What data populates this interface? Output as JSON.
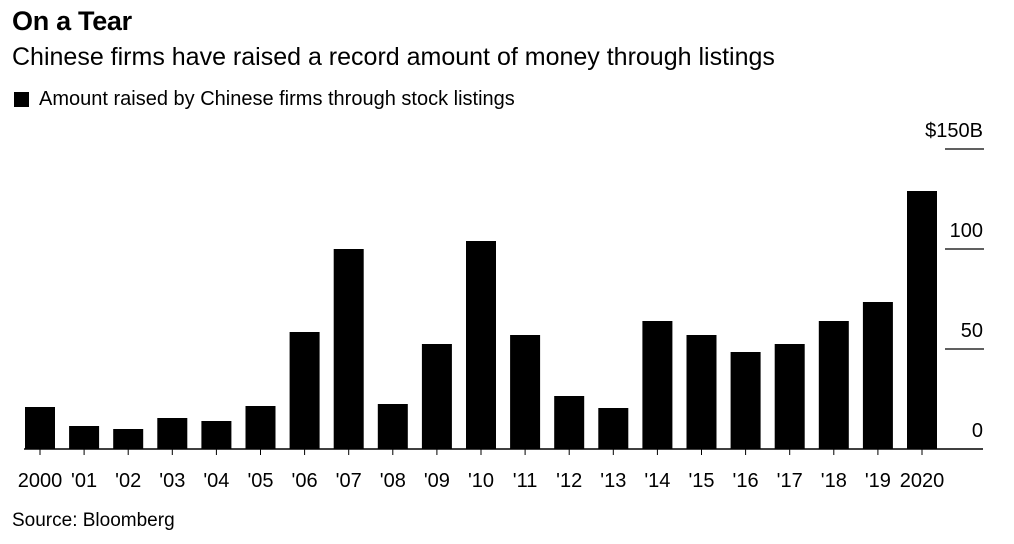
{
  "chart_data": {
    "type": "bar",
    "title": "On a Tear",
    "subtitle": "Chinese firms have raised a record amount of money through listings",
    "legend": [
      {
        "name": "Amount raised by Chinese firms through stock listings",
        "color": "#000000"
      }
    ],
    "categories": [
      "2000",
      "'01",
      "'02",
      "'03",
      "'04",
      "'05",
      "'06",
      "'07",
      "'08",
      "'09",
      "'10",
      "'11",
      "'12",
      "'13",
      "'14",
      "'15",
      "'16",
      "'17",
      "'18",
      "'19",
      "2020"
    ],
    "values": [
      21,
      11.5,
      10,
      15.5,
      14,
      21.5,
      58.5,
      100,
      22.5,
      52.5,
      104,
      57,
      26.5,
      20.5,
      64,
      57,
      48.5,
      52.5,
      64,
      73.5,
      129
    ],
    "ylim": [
      0,
      150
    ],
    "yticks": [
      {
        "value": 0,
        "label": "0"
      },
      {
        "value": 50,
        "label": "50"
      },
      {
        "value": 100,
        "label": "100"
      },
      {
        "value": 150,
        "label": "$150B"
      }
    ],
    "xlabel": "",
    "ylabel": "",
    "source": "Source: Bloomberg",
    "bar_color": "#000000"
  }
}
